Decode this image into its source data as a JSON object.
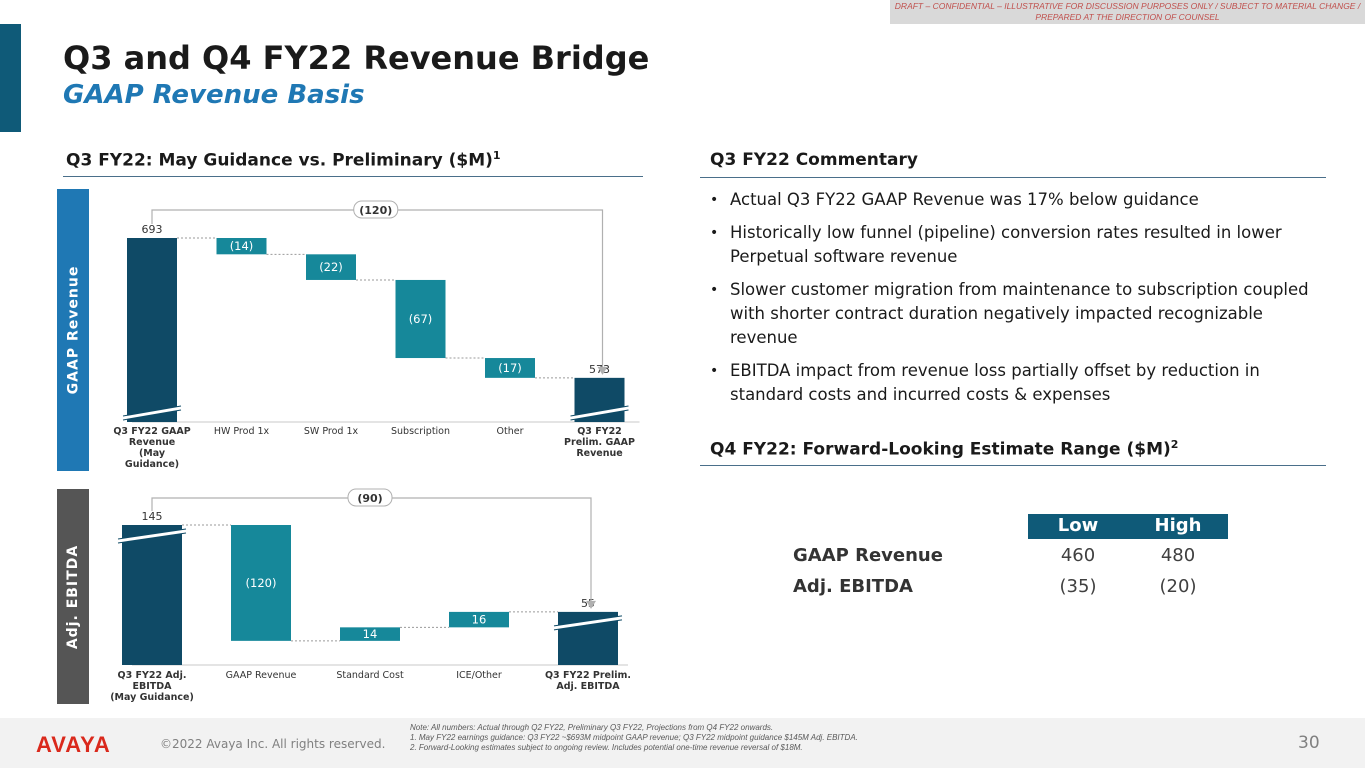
{
  "banner": {
    "line1": "DRAFT – CONFIDENTIAL – ILLUSTRATIVE FOR DISCUSSION PURPOSES ONLY / SUBJECT TO MATERIAL CHANGE /",
    "line2": "PREPARED AT THE DIRECTION OF COUNSEL"
  },
  "title": "Q3 and Q4 FY22 Revenue Bridge",
  "subtitle": "GAAP Revenue Basis",
  "left_heading": "Q3 FY22: May Guidance vs. Preliminary ($M)",
  "left_heading_sup": "1",
  "side_labels": {
    "top": "GAAP Revenue",
    "bottom": "Adj. EBITDA"
  },
  "colors": {
    "dark": "#0f4a66",
    "teal": "#16889a",
    "side_top": "#1f78b4",
    "side_bottom": "#555555"
  },
  "chart_data": [
    {
      "type": "bar",
      "subtype": "waterfall",
      "categories": [
        [
          "Q3 FY22 GAAP",
          "Revenue",
          "(May",
          "Guidance)"
        ],
        [
          "HW Prod 1x"
        ],
        [
          "SW Prod 1x"
        ],
        [
          "Subscription"
        ],
        [
          "Other"
        ],
        [
          "Q3 FY22",
          "Prelim. GAAP",
          "Revenue"
        ]
      ],
      "bar_kinds": [
        "total",
        "delta",
        "delta",
        "delta",
        "delta",
        "total"
      ],
      "values": [
        693,
        -14,
        -22,
        -67,
        -17,
        573
      ],
      "labels": [
        "693",
        "(14)",
        "(22)",
        "(67)",
        "(17)",
        "573"
      ],
      "bridge_label": "(120)",
      "axis_break": true
    },
    {
      "type": "bar",
      "subtype": "waterfall",
      "categories": [
        [
          "Q3 FY22 Adj.",
          "EBITDA",
          "(May Guidance)"
        ],
        [
          "GAAP Revenue"
        ],
        [
          "Standard Cost"
        ],
        [
          "ICE/Other"
        ],
        [
          "Q3 FY22 Prelim.",
          "Adj. EBITDA"
        ]
      ],
      "bar_kinds": [
        "total",
        "delta",
        "delta",
        "delta",
        "total"
      ],
      "values": [
        145,
        -120,
        14,
        16,
        55
      ],
      "labels": [
        "145",
        "(120)",
        "14",
        "16",
        "55"
      ],
      "bridge_label": "(90)",
      "axis_break": true
    }
  ],
  "commentary": {
    "heading": "Q3 FY22 Commentary",
    "bullets": [
      "Actual Q3 FY22 GAAP Revenue was 17% below guidance",
      "Historically low funnel (pipeline) conversion rates resulted in lower Perpetual software revenue",
      "Slower customer migration from maintenance to subscription coupled with shorter contract duration negatively impacted recognizable revenue",
      "EBITDA impact from revenue loss partially offset by reduction in standard costs and incurred costs & expenses"
    ]
  },
  "estimate": {
    "heading": "Q4 FY22: Forward-Looking Estimate Range ($M)",
    "heading_sup": "2",
    "columns": [
      "Low",
      "High"
    ],
    "rows": [
      {
        "label": "GAAP Revenue",
        "low": "460",
        "high": "480"
      },
      {
        "label": "Adj. EBITDA",
        "low": "(35)",
        "high": "(20)"
      }
    ]
  },
  "footer": {
    "logo": "AVAYA",
    "copyright": "©2022 Avaya Inc. All rights reserved.",
    "notes": [
      "Note: All numbers: Actual through Q2 FY22, Preliminary Q3 FY22, Projections from Q4 FY22 onwards.",
      "1. May FY22 earnings guidance: Q3 FY22 ~$693M midpoint GAAP revenue; Q3 FY22 midpoint guidance $145M Adj. EBITDA.",
      "2. Forward-Looking estimates subject to ongoing review. Includes potential one-time revenue reversal of $18M."
    ],
    "page": "30"
  }
}
